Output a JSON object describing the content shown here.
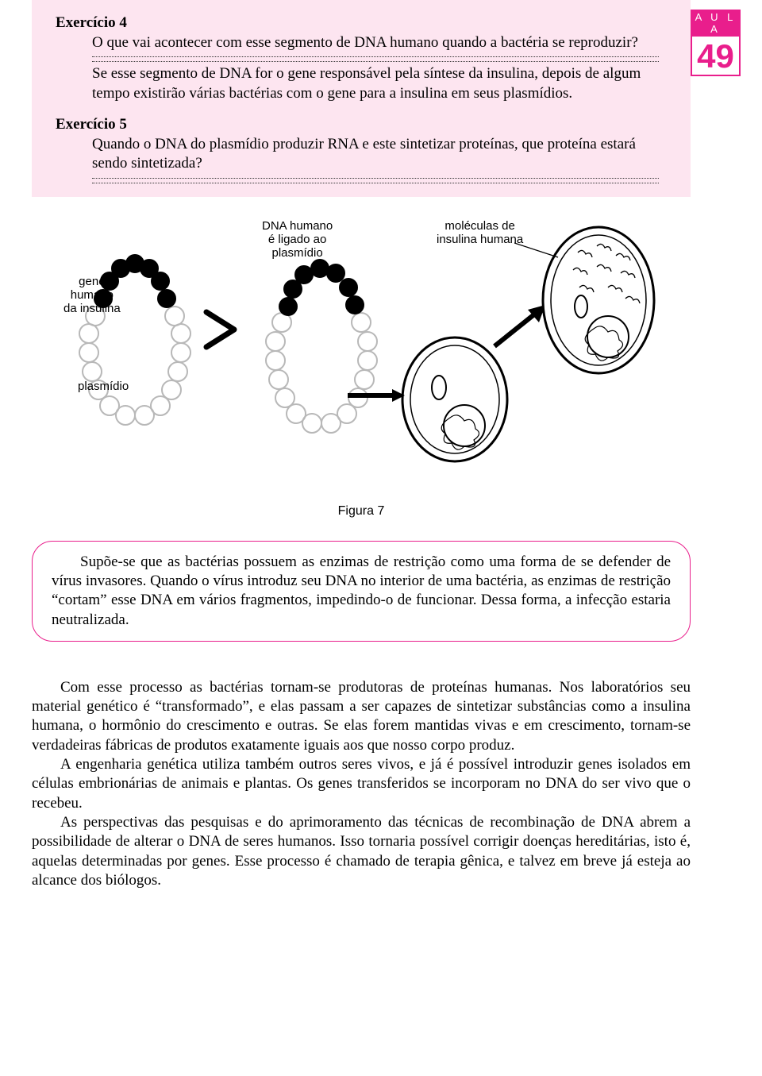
{
  "sidebar": {
    "aula_label": "A U L A",
    "lesson_number": "49"
  },
  "exercise4": {
    "title": "Exercício 4",
    "question": "O que vai acontecer com esse segmento de DNA humano quando a bactéria se reproduzir?",
    "answer": "Se esse segmento de DNA for o gene responsável pela síntese da insulina, depois de algum tempo existirão várias bactérias com o gene para a insulina em seus plasmídios."
  },
  "exercise5": {
    "title": "Exercício 5",
    "question": "Quando o DNA do plasmídio produzir RNA e este sintetizar proteínas, que proteína estará sendo sintetizada?"
  },
  "diagram": {
    "labels": {
      "gene_humano": "gene\nhumano\nda insulina",
      "plasmidio": "plasmídio",
      "dna_ligado": "DNA humano\né ligado ao\nplasmídio",
      "moleculas": "moléculas de\ninsulina humana"
    },
    "caption": "Figura 7",
    "colors": {
      "stroke": "#000000",
      "plasmid_light": "#f2f2f2",
      "plasmid_dark": "#000000"
    }
  },
  "info_box": {
    "text": "Supõe-se que as bactérias possuem as enzimas de restrição como uma forma de se defender de vírus invasores. Quando o vírus introduz seu DNA no interior de uma bactéria, as enzimas de restrição “cortam” esse DNA em vários fragmentos, impedindo-o de funcionar. Dessa forma, a infecção estaria neutralizada."
  },
  "main_text": {
    "p1": "Com esse processo as bactérias tornam-se produtoras de proteínas humanas. Nos laboratórios seu material genético é “transformado”, e elas passam a ser capazes de sintetizar substâncias como a insulina humana, o hormônio do crescimento e outras. Se elas forem mantidas vivas e em crescimento, tornam-se verdadeiras fábricas de produtos exatamente iguais aos que nosso corpo produz.",
    "p2": "A engenharia genética utiliza também outros seres vivos, e já é possível introduzir genes isolados em células embrionárias de animais e plantas. Os genes transferidos se incorporam no DNA do ser vivo que o recebeu.",
    "p3": "As perspectivas das pesquisas e do aprimoramento das técnicas de recombinação de DNA abrem a possibilidade de alterar o DNA de seres humanos. Isso tornaria possível corrigir doenças hereditárias, isto é, aquelas determinadas por genes. Esse processo é chamado de terapia gênica, e talvez em breve já esteja ao alcance dos biólogos."
  }
}
